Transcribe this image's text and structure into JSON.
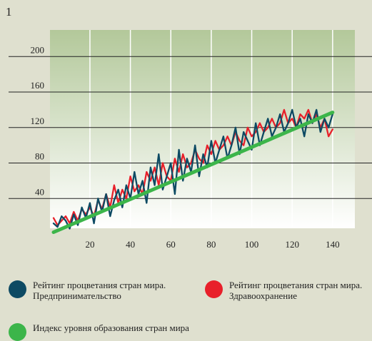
{
  "chart_data": {
    "type": "line",
    "title": "1",
    "x": [
      2,
      4,
      6,
      8,
      10,
      12,
      14,
      16,
      18,
      20,
      22,
      24,
      26,
      28,
      30,
      32,
      34,
      36,
      38,
      40,
      42,
      44,
      46,
      48,
      50,
      52,
      54,
      56,
      58,
      60,
      62,
      64,
      66,
      68,
      70,
      72,
      74,
      76,
      78,
      80,
      82,
      84,
      86,
      88,
      90,
      92,
      94,
      96,
      98,
      100,
      102,
      104,
      106,
      108,
      110,
      112,
      114,
      116,
      118,
      120,
      122,
      124,
      126,
      128,
      130,
      132,
      134,
      136,
      138,
      140
    ],
    "series": [
      {
        "name": "Рейтинг процветания стран мира. Здравоохранение",
        "color": "#e8202a",
        "values": [
          18,
          10,
          15,
          20,
          12,
          25,
          15,
          28,
          22,
          30,
          20,
          38,
          28,
          45,
          30,
          55,
          35,
          50,
          40,
          65,
          48,
          55,
          45,
          70,
          60,
          75,
          55,
          80,
          65,
          60,
          85,
          70,
          90,
          75,
          80,
          95,
          85,
          80,
          100,
          90,
          105,
          95,
          100,
          110,
          100,
          115,
          105,
          100,
          120,
          110,
          115,
          125,
          115,
          120,
          130,
          120,
          125,
          140,
          125,
          130,
          120,
          135,
          130,
          140,
          125,
          135,
          120,
          130,
          110,
          118
        ]
      },
      {
        "name": "Рейтинг процветания стран мира. Предпринимательство",
        "color": "#0d4a63",
        "values": [
          12,
          8,
          20,
          15,
          6,
          22,
          10,
          30,
          18,
          35,
          12,
          40,
          25,
          45,
          20,
          38,
          50,
          30,
          55,
          40,
          70,
          45,
          60,
          35,
          75,
          55,
          90,
          50,
          65,
          80,
          45,
          95,
          60,
          85,
          70,
          100,
          65,
          90,
          75,
          105,
          80,
          95,
          110,
          85,
          100,
          120,
          90,
          115,
          105,
          95,
          125,
          100,
          115,
          130,
          110,
          120,
          135,
          115,
          125,
          140,
          120,
          130,
          110,
          135,
          125,
          140,
          115,
          130,
          120,
          135
        ]
      },
      {
        "name": "Индекс уровня образования стран мира",
        "color": "#3cb54a",
        "x": [
          2,
          140
        ],
        "values": [
          2,
          137
        ]
      }
    ],
    "xlim": [
      0,
      151
    ],
    "xticks": [
      20,
      40,
      60,
      80,
      100,
      120,
      140
    ],
    "ylim": [
      0,
      230
    ],
    "yticks": [
      40,
      80,
      120,
      160,
      200
    ],
    "grid": true
  }
}
